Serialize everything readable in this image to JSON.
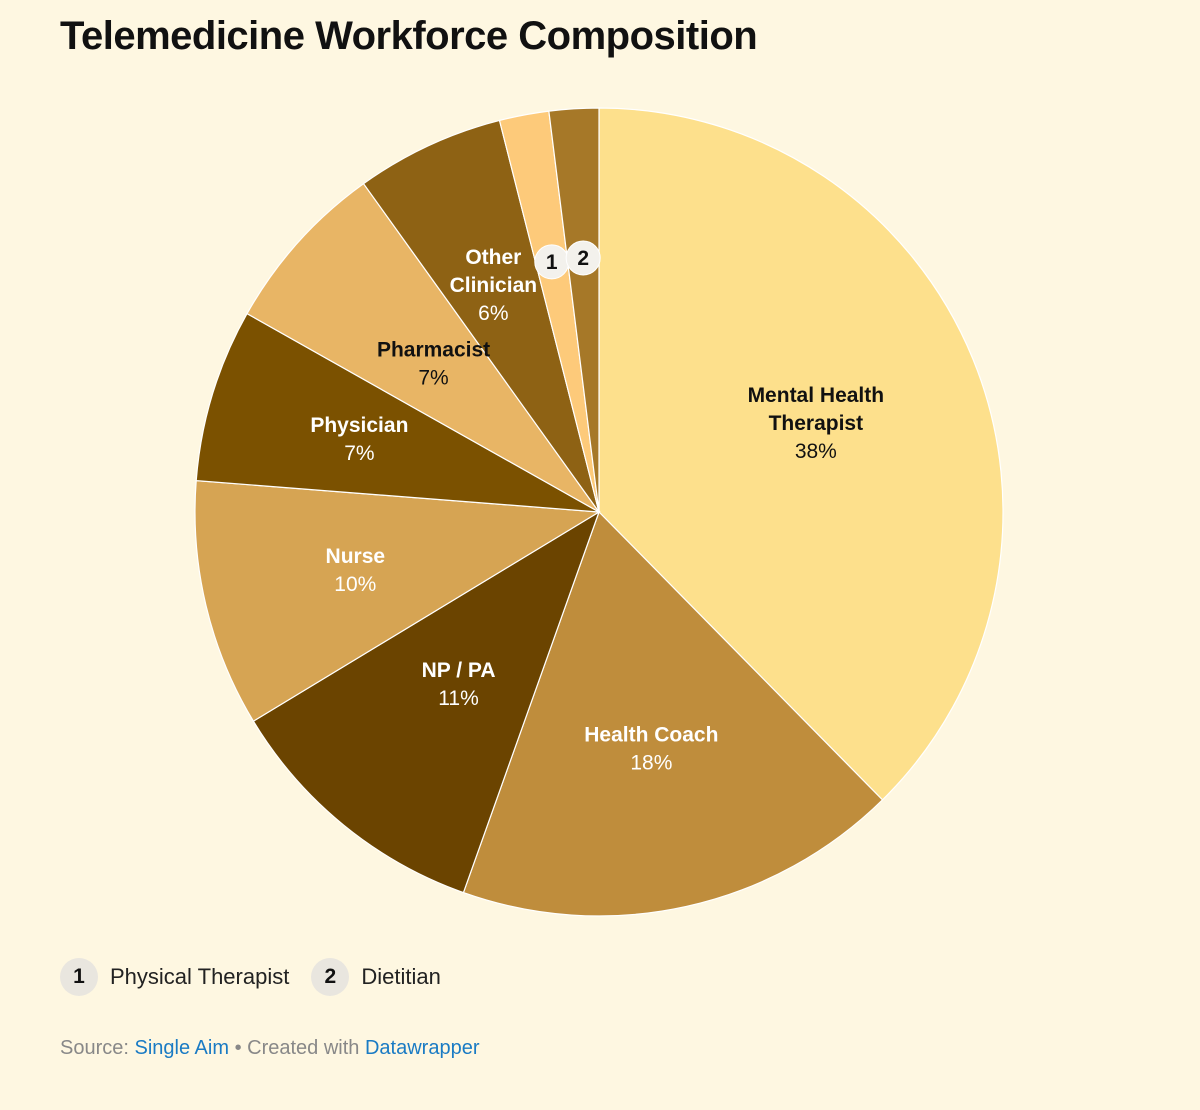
{
  "title": "Telemedicine Workforce Composition",
  "chart_data": {
    "type": "pie",
    "title": "Telemedicine Workforce Composition",
    "start_angle_deg": 0,
    "direction": "clockwise",
    "slices": [
      {
        "name": "Mental Health Therapist",
        "display_name": [
          "Mental Health",
          "Therapist"
        ],
        "value": 38,
        "label": "38%",
        "color": "#fde08c",
        "text_color": "#111111"
      },
      {
        "name": "Health Coach",
        "display_name": [
          "Health Coach"
        ],
        "value": 18,
        "label": "18%",
        "color": "#bf8d3c",
        "text_color": "#ffffff"
      },
      {
        "name": "NP / PA",
        "display_name": [
          "NP / PA"
        ],
        "value": 11,
        "label": "11%",
        "color": "#6b4400",
        "text_color": "#ffffff"
      },
      {
        "name": "Nurse",
        "display_name": [
          "Nurse"
        ],
        "value": 10,
        "label": "10%",
        "color": "#d6a453",
        "text_color": "#ffffff"
      },
      {
        "name": "Physician",
        "display_name": [
          "Physician"
        ],
        "value": 7,
        "label": "7%",
        "color": "#7b5100",
        "text_color": "#ffffff"
      },
      {
        "name": "Pharmacist",
        "display_name": [
          "Pharmacist"
        ],
        "value": 7,
        "label": "7%",
        "color": "#e8b565",
        "text_color": "#111111"
      },
      {
        "name": "Other Clinician",
        "display_name": [
          "Other",
          "Clinician"
        ],
        "value": 6,
        "label": "6%",
        "color": "#8e6214",
        "text_color": "#ffffff"
      },
      {
        "name": "Physical Therapist",
        "marker": "1",
        "value": 2,
        "color": "#fdca7a"
      },
      {
        "name": "Dietitian",
        "marker": "2",
        "value": 2,
        "color": "#a67828"
      }
    ]
  },
  "legend": {
    "items": [
      {
        "marker": "1",
        "label": "Physical Therapist"
      },
      {
        "marker": "2",
        "label": "Dietitian"
      }
    ]
  },
  "footer": {
    "source_prefix": "Source:",
    "source_name": "Single Aim",
    "separator": "•",
    "created_prefix": "Created with",
    "tool_name": "Datawrapper"
  }
}
